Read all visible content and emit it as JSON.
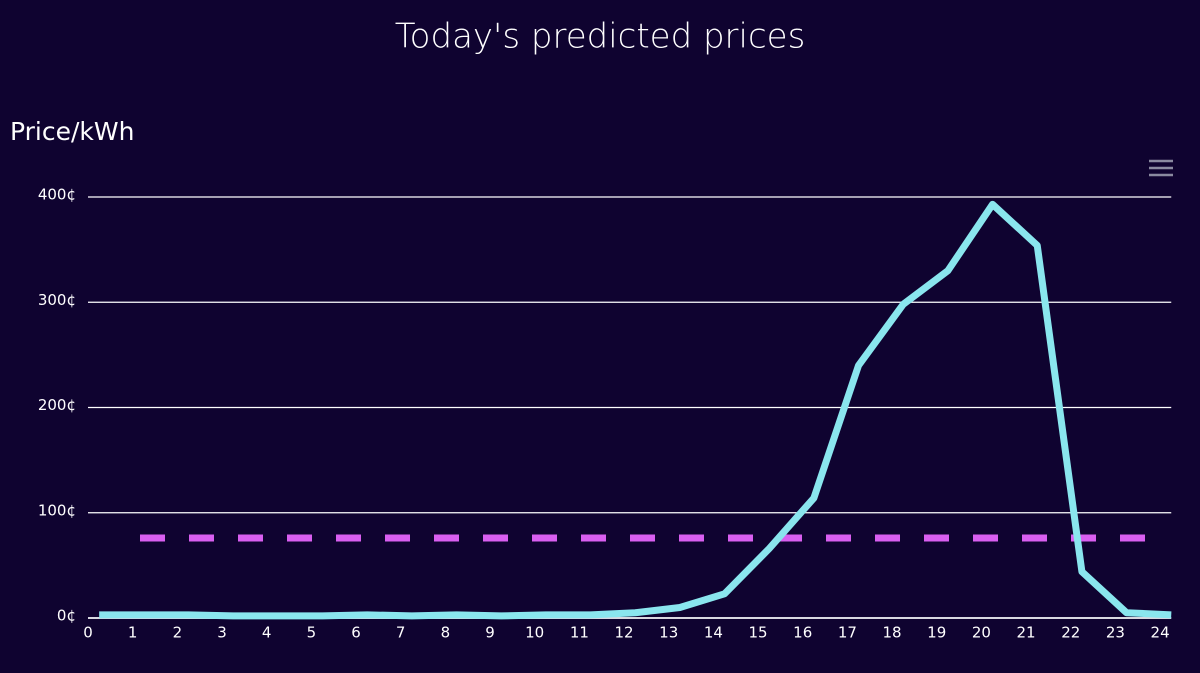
{
  "chart_data": {
    "type": "line",
    "title": "Today's predicted prices",
    "y_axis_label": "Price/kWh",
    "x": [
      0.25,
      1.25,
      2.25,
      3.25,
      4.25,
      5.25,
      6.25,
      7.25,
      8.25,
      9.25,
      10.25,
      11.25,
      12.25,
      13.25,
      14.25,
      15.25,
      16.25,
      17.25,
      18.25,
      19.25,
      20.25,
      21.25,
      22.25,
      23.25,
      24.25
    ],
    "series": [
      {
        "color": "#8ae6ee",
        "values": [
          3,
          3,
          3,
          2,
          2,
          2,
          3,
          2,
          3,
          2,
          3,
          3,
          5,
          10,
          23,
          66,
          114,
          240,
          298,
          330,
          393,
          354,
          44,
          5,
          3
        ]
      }
    ],
    "reference_line": {
      "value": 76,
      "color": "#d95ff0"
    },
    "xlim": [
      0,
      24.25
    ],
    "xticks": [
      0,
      1,
      2,
      3,
      4,
      5,
      6,
      7,
      8,
      9,
      10,
      11,
      12,
      13,
      14,
      15,
      16,
      17,
      18,
      19,
      20,
      21,
      22,
      23,
      24
    ],
    "ylim": [
      0,
      400
    ],
    "yticks": [
      {
        "value": 0,
        "label": "0¢"
      },
      {
        "value": 100,
        "label": "100¢"
      },
      {
        "value": 200,
        "label": "200¢"
      },
      {
        "value": 300,
        "label": "300¢"
      },
      {
        "value": 400,
        "label": "400¢"
      }
    ],
    "grid": true
  }
}
